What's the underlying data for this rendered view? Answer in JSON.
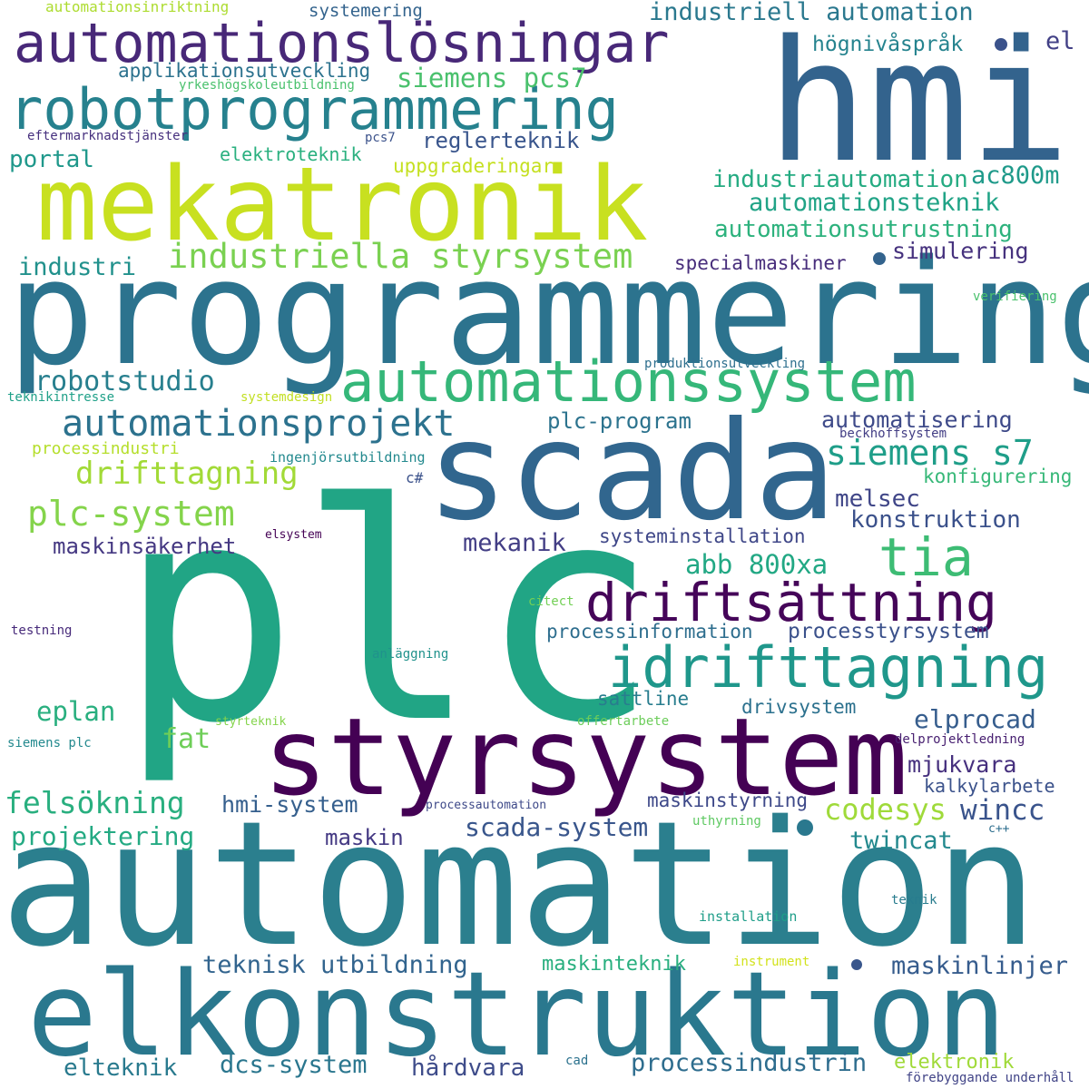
{
  "words": [
    {
      "text": "plc",
      "color": "#21a585"
    },
    {
      "text": "automation",
      "color": "#2b7f8e"
    },
    {
      "text": "programmering",
      "color": "#2c738e"
    },
    {
      "text": "hmi",
      "color": "#33638d"
    },
    {
      "text": "scada",
      "color": "#31668e"
    },
    {
      "text": "elkonstruktion",
      "color": "#2a788e"
    },
    {
      "text": "styrsystem",
      "color": "#440154"
    },
    {
      "text": "mekatronik",
      "color": "#c8e020"
    },
    {
      "text": "automationslösningar",
      "color": "#482878"
    },
    {
      "text": "robotprogrammering",
      "color": "#26818e"
    },
    {
      "text": "automationssystem",
      "color": "#35b779"
    },
    {
      "text": "idrifttagning",
      "color": "#1f978b"
    },
    {
      "text": "driftsättning",
      "color": "#450559"
    },
    {
      "text": "tia",
      "color": "#3dbc74"
    },
    {
      "text": "automationsprojekt",
      "color": "#2c728e"
    },
    {
      "text": "industriella styrsystem",
      "color": "#7ad151"
    },
    {
      "text": "automationsteknik",
      "color": "#20a386"
    },
    {
      "text": "automationsutrustning",
      "color": "#2db27d"
    },
    {
      "text": "industriautomation",
      "color": "#25ab82"
    },
    {
      "text": "siemens s7",
      "color": "#1f9e89"
    },
    {
      "text": "plc-system",
      "color": "#84d44b"
    },
    {
      "text": "drifttagning",
      "color": "#a2da37"
    },
    {
      "text": "robotstudio",
      "color": "#277f8e"
    },
    {
      "text": "felsökning",
      "color": "#29af7f"
    },
    {
      "text": "codesys",
      "color": "#9fda3a"
    },
    {
      "text": "abb 800xa",
      "color": "#22a884"
    },
    {
      "text": "industriell automation",
      "color": "#2a788e"
    },
    {
      "text": "siemens pcs7",
      "color": "#4ac16d"
    },
    {
      "text": "applikationsutveckling",
      "color": "#2c728e"
    },
    {
      "text": "högnivåspråk",
      "color": "#25838e"
    },
    {
      "text": "el",
      "color": "#424086"
    },
    {
      "text": "reglerteknik",
      "color": "#39558c"
    },
    {
      "text": "portal",
      "color": "#1f988b"
    },
    {
      "text": "elektroteknik",
      "color": "#2ab07f"
    },
    {
      "text": "uppgraderingar",
      "color": "#c5e021"
    },
    {
      "text": "ac800m",
      "color": "#1f9a8a"
    },
    {
      "text": "simulering",
      "color": "#46327e"
    },
    {
      "text": "specialmaskiner",
      "color": "#472d7b"
    },
    {
      "text": "industri",
      "color": "#21918c"
    },
    {
      "text": "verifiering",
      "color": "#4ac16d"
    },
    {
      "text": "plc-program",
      "color": "#2c738e"
    },
    {
      "text": "automatisering",
      "color": "#3e4a89"
    },
    {
      "text": "konfigurering",
      "color": "#37b878"
    },
    {
      "text": "melsec",
      "color": "#404688"
    },
    {
      "text": "konstruktion",
      "color": "#3b518b"
    },
    {
      "text": "mekanik",
      "color": "#433e85"
    },
    {
      "text": "maskinsäkerhet",
      "color": "#453882"
    },
    {
      "text": "systeminstallation",
      "color": "#3f4788"
    },
    {
      "text": "processinformation",
      "color": "#2e6e8e"
    },
    {
      "text": "processtyrsystem",
      "color": "#3b518b"
    },
    {
      "text": "eplan",
      "color": "#29af7f"
    },
    {
      "text": "sattline",
      "color": "#287d8e"
    },
    {
      "text": "drivsystem",
      "color": "#2c718e"
    },
    {
      "text": "elprocad",
      "color": "#365d8d"
    },
    {
      "text": "fat",
      "color": "#6ece58"
    },
    {
      "text": "mjukvara",
      "color": "#46307e"
    },
    {
      "text": "kalkylarbete",
      "color": "#3b528b"
    },
    {
      "text": "maskinstyrning",
      "color": "#3e4989"
    },
    {
      "text": "hmi-system",
      "color": "#355f8d"
    },
    {
      "text": "scada-system",
      "color": "#39568c"
    },
    {
      "text": "wincc",
      "color": "#3a548c"
    },
    {
      "text": "projektering",
      "color": "#24aa83"
    },
    {
      "text": "maskin",
      "color": "#443983"
    },
    {
      "text": "twincat",
      "color": "#23898e"
    },
    {
      "text": "teknisk utbildning",
      "color": "#32648e"
    },
    {
      "text": "maskinteknik",
      "color": "#29af7f"
    },
    {
      "text": "maskinlinjer",
      "color": "#365c8d"
    },
    {
      "text": "elteknik",
      "color": "#297a8e"
    },
    {
      "text": "dcs-system",
      "color": "#2a768e"
    },
    {
      "text": "hårdvara",
      "color": "#3e4c8a"
    },
    {
      "text": "processindustrin",
      "color": "#2e6d8e"
    },
    {
      "text": "elektronik",
      "color": "#a0da39"
    },
    {
      "text": "automationsinriktning",
      "color": "#addc30"
    },
    {
      "text": "systemering",
      "color": "#33638d"
    },
    {
      "text": "yrkeshögskoleutbildning",
      "color": "#4ac16d"
    },
    {
      "text": "eftermarknadstjänster",
      "color": "#46307e"
    },
    {
      "text": "pcs7",
      "color": "#3b528b"
    },
    {
      "text": "produktionsutveckling",
      "color": "#2e6f8e"
    },
    {
      "text": "teknikintresse",
      "color": "#1fa088"
    },
    {
      "text": "systemdesign",
      "color": "#c2df23"
    },
    {
      "text": "beckhoffsystem",
      "color": "#433e85"
    },
    {
      "text": "processindustri",
      "color": "#b5de2b"
    },
    {
      "text": "ingenjörsutbildning",
      "color": "#23898e"
    },
    {
      "text": "c#",
      "color": "#3b528b"
    },
    {
      "text": "elsystem",
      "color": "#440154"
    },
    {
      "text": "citect",
      "color": "#73d056"
    },
    {
      "text": "testning",
      "color": "#472a7a"
    },
    {
      "text": "anläggning",
      "color": "#20928c"
    },
    {
      "text": "styrteknik",
      "color": "#84d44b"
    },
    {
      "text": "offertarbete",
      "color": "#6ccd5a"
    },
    {
      "text": "delprojektledning",
      "color": "#482071"
    },
    {
      "text": "siemens plc",
      "color": "#23898e"
    },
    {
      "text": "processautomation",
      "color": "#3e4989"
    },
    {
      "text": "uthyrning",
      "color": "#5ec962"
    },
    {
      "text": "c++",
      "color": "#2e6e8e"
    },
    {
      "text": "teknik",
      "color": "#287c8e"
    },
    {
      "text": "installation",
      "color": "#1f9e89"
    },
    {
      "text": "instrument",
      "color": "#d2e21b"
    },
    {
      "text": "cad",
      "color": "#2c728e"
    },
    {
      "text": "förebyggande underhåll",
      "color": "#414487"
    }
  ]
}
